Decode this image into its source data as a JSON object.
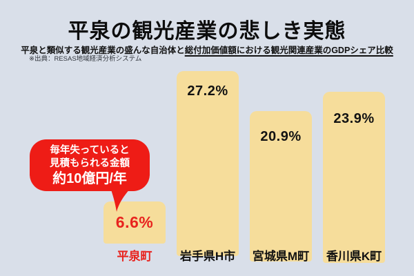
{
  "page": {
    "background": "#d9dfe9"
  },
  "header": {
    "title": "平泉の観光産業の悲しき実態",
    "subtitle_plain": "平泉と類似する観光産業の盛んな自治体と",
    "subtitle_underlined": "総付加価値額における観光関連産業のGDPシェア比較",
    "source": "※出典：RESAS地域経済分析システム"
  },
  "annotation_bubble": {
    "line1": "毎年失っていると",
    "line2": "見積もられる金額",
    "line3": "約10億円/年",
    "background": "#ee1c16",
    "text_color": "#ffffff"
  },
  "chart_data": {
    "type": "bar",
    "title": "平泉の観光産業の悲しき実態",
    "subtitle": "平泉と類似する観光産業の盛んな自治体と総付加価値額における観光関連産業のGDPシェア比較",
    "source": "※出典：RESAS地域経済分析システム",
    "categories": [
      "平泉町",
      "岩手県H市",
      "宮城県M町",
      "香川県K町"
    ],
    "values": [
      6.6,
      27.2,
      20.9,
      23.9
    ],
    "unit": "%",
    "ylim": [
      0,
      27.5
    ],
    "grid": false,
    "legend": "none",
    "bar_color": "#f6dd9b",
    "background_color": "#d9dfe9",
    "highlight_color": "#e8231e",
    "annotation": "毎年失っていると見積もられる金額 約10億円/年",
    "bars": [
      {
        "category": "平泉町",
        "value": 6.6,
        "value_label": "6.6%",
        "highlighted": true
      },
      {
        "category": "岩手県H市",
        "value": 27.2,
        "value_label": "27.2%",
        "highlighted": false
      },
      {
        "category": "宮城県M町",
        "value": 20.9,
        "value_label": "20.9%",
        "highlighted": false
      },
      {
        "category": "香川県K町",
        "value": 23.9,
        "value_label": "23.9%",
        "highlighted": false
      }
    ]
  }
}
